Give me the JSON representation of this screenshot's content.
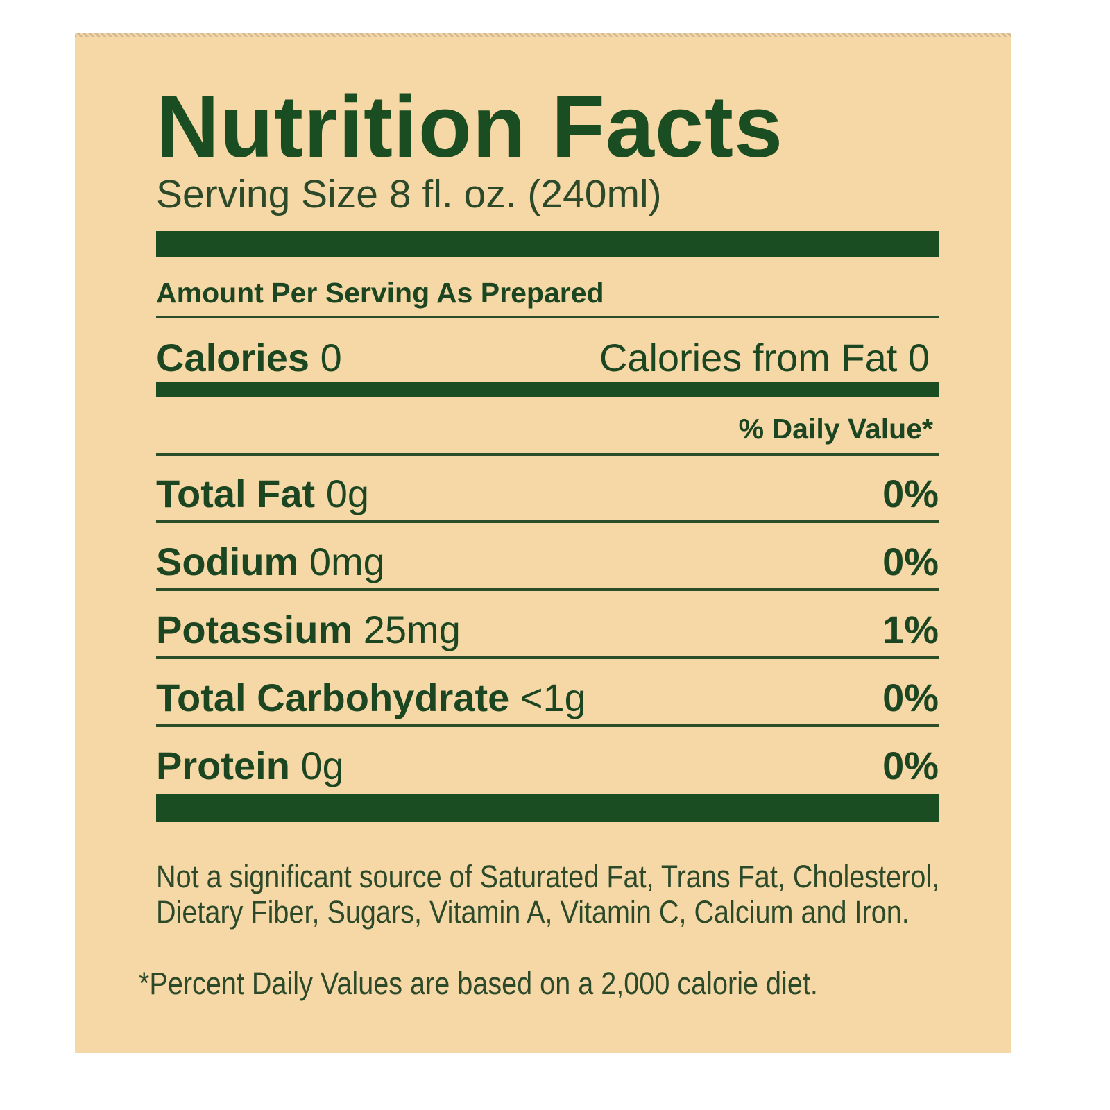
{
  "label": {
    "title": "Nutrition Facts",
    "serving_size": "Serving Size 8 fl. oz. (240ml)",
    "amount_heading": "Amount Per Serving As Prepared",
    "calories_label": "Calories",
    "calories_value": "0",
    "calories_from_fat": "Calories from Fat 0",
    "daily_value_heading": "% Daily Value*",
    "nutrients": [
      {
        "name": "Total Fat",
        "amount": "0g",
        "dv": "0%"
      },
      {
        "name": "Sodium",
        "amount": "0mg",
        "dv": "0%"
      },
      {
        "name": "Potassium",
        "amount": "25mg",
        "dv": "1%"
      },
      {
        "name": "Total Carbohydrate",
        "amount": "<1g",
        "dv": "0%"
      },
      {
        "name": "Protein",
        "amount": "0g",
        "dv": "0%"
      }
    ],
    "footnote_1": "Not a significant source of Saturated Fat, Trans Fat, Cholesterol, Dietary Fiber, Sugars, Vitamin A, Vitamin C, Calcium and Iron.",
    "footnote_2": "*Percent Daily Values are based on a 2,000 calorie diet."
  },
  "colors": {
    "background": "#f6d8a6",
    "ink": "#1a4d22"
  }
}
